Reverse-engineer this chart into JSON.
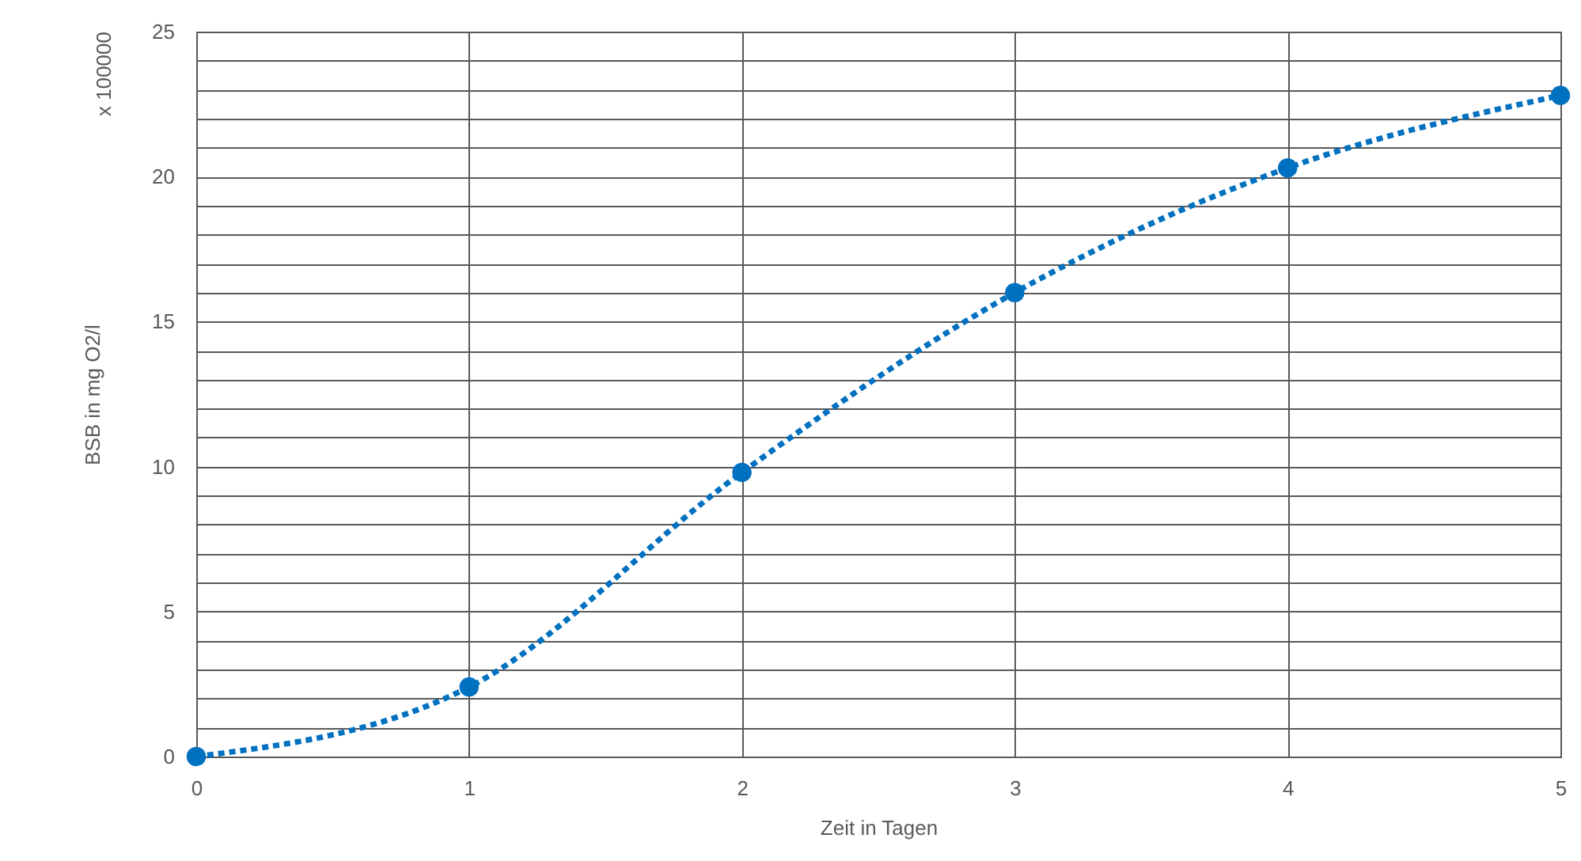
{
  "chart_data": {
    "type": "line",
    "xlabel": "Zeit in Tagen",
    "ylabel": "BSB in mg O2/l",
    "annotations": [
      "x 100000"
    ],
    "x": [
      0,
      1,
      2,
      3,
      4,
      5
    ],
    "series": [
      {
        "color": "#0070c0",
        "values": [
          0,
          2.4,
          9.8,
          16,
          20.3,
          22.8
        ]
      }
    ],
    "xlim": [
      0,
      5
    ],
    "xticks": [
      0,
      1,
      2,
      3,
      4,
      5
    ],
    "ylim": [
      0,
      25
    ],
    "yticks": [
      0,
      {
        "value": 1,
        "label": null
      },
      {
        "value": 2,
        "label": null
      },
      {
        "value": 3,
        "label": null
      },
      {
        "value": 4,
        "label": null
      },
      5,
      {
        "value": 6,
        "label": null
      },
      {
        "value": 7,
        "label": null
      },
      {
        "value": 8,
        "label": null
      },
      {
        "value": 9,
        "label": null
      },
      10,
      {
        "value": 11,
        "label": null
      },
      {
        "value": 12,
        "label": null
      },
      {
        "value": 13,
        "label": null
      },
      {
        "value": 14,
        "label": null
      },
      15,
      {
        "value": 16,
        "label": null
      },
      {
        "value": 17,
        "label": null
      },
      {
        "value": 18,
        "label": null
      },
      {
        "value": 19,
        "label": null
      },
      20,
      {
        "value": 21,
        "label": null
      },
      {
        "value": 22,
        "label": null
      },
      {
        "value": 23,
        "label": null
      },
      {
        "value": 24,
        "label": null
      },
      25
    ],
    "grid": true,
    "marker": "circle",
    "line_style": "dotted"
  }
}
